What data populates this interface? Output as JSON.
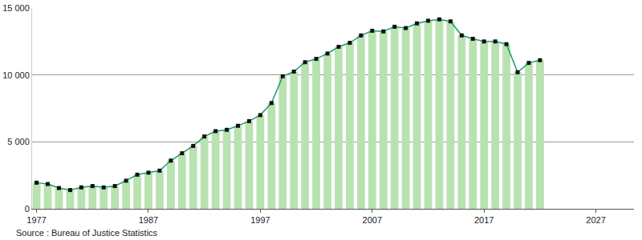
{
  "chart_data": {
    "type": "bar",
    "source": "Source : Bureau of Justice Statistics",
    "x": [
      1977,
      1978,
      1979,
      1980,
      1981,
      1982,
      1983,
      1984,
      1985,
      1986,
      1987,
      1988,
      1989,
      1990,
      1991,
      1992,
      1993,
      1994,
      1995,
      1996,
      1997,
      1998,
      1999,
      2000,
      2001,
      2002,
      2003,
      2004,
      2005,
      2006,
      2007,
      2008,
      2009,
      2010,
      2011,
      2012,
      2013,
      2014,
      2015,
      2016,
      2017,
      2018,
      2019,
      2020,
      2021,
      2022
    ],
    "values": [
      1950,
      1850,
      1550,
      1400,
      1600,
      1700,
      1600,
      1700,
      2100,
      2550,
      2700,
      2850,
      3600,
      4150,
      4700,
      5400,
      5800,
      5900,
      6200,
      6550,
      7000,
      7900,
      9900,
      10250,
      10950,
      11200,
      11600,
      12100,
      12400,
      12950,
      13300,
      13250,
      13600,
      13500,
      13850,
      14050,
      14150,
      14000,
      12950,
      12700,
      12500,
      12500,
      12300,
      10200,
      10900,
      11100
    ],
    "color": "#b8e2b0",
    "line_style": "solid",
    "marker": "square",
    "xlim": [
      1976.6,
      2030.4
    ],
    "xticks": [
      1977,
      1987,
      1997,
      2007,
      2017,
      2027
    ],
    "ylim": [
      0,
      15000
    ],
    "yticks": [
      0,
      {
        "value": 5000,
        "label": "5 000"
      },
      {
        "value": 10000,
        "label": "10 000"
      },
      {
        "value": 15000,
        "label": "15 000"
      }
    ],
    "grid": true
  }
}
